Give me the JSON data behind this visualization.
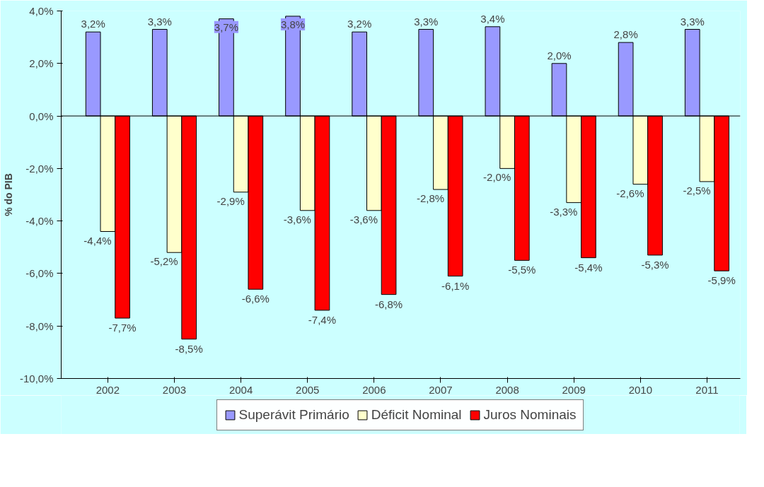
{
  "chart_data": {
    "type": "bar",
    "ylabel": "% do PIB",
    "categories": [
      "2002",
      "2003",
      "2004",
      "2005",
      "2006",
      "2007",
      "2008",
      "2009",
      "2010",
      "2011"
    ],
    "series": [
      {
        "name": "Superávit Primário",
        "color": "#9999ff",
        "values": [
          3.2,
          3.3,
          3.7,
          3.8,
          3.2,
          3.3,
          3.4,
          2.0,
          2.8,
          3.3
        ],
        "value_labels": [
          "3,2%",
          "3,3%",
          "3,7%",
          "3,8%",
          "3,2%",
          "3,3%",
          "3,4%",
          "2,0%",
          "2,8%",
          "3,3%"
        ]
      },
      {
        "name": "Déficit Nominal",
        "color": "#ffffcc",
        "values": [
          -4.4,
          -5.2,
          -2.9,
          -3.6,
          -3.6,
          -2.8,
          -2.0,
          -3.3,
          -2.6,
          -2.5
        ],
        "value_labels": [
          "-4,4%",
          "-5,2%",
          "-2,9%",
          "-3,6%",
          "-3,6%",
          "-2,8%",
          "-2,0%",
          "-3,3%",
          "-2,6%",
          "-2,5%"
        ]
      },
      {
        "name": "Juros Nominais",
        "color": "#ff0000",
        "values": [
          -7.7,
          -8.5,
          -6.6,
          -7.4,
          -6.8,
          -6.1,
          -5.5,
          -5.4,
          -5.3,
          -5.9
        ],
        "value_labels": [
          "-7,7%",
          "-8,5%",
          "-6,6%",
          "-7,4%",
          "-6,8%",
          "-6,1%",
          "-5,5%",
          "-5,4%",
          "-5,3%",
          "-5,9%"
        ]
      }
    ],
    "ylim": [
      -10,
      4
    ],
    "yticks": [
      {
        "value": -10,
        "label": "-10,0%"
      },
      {
        "value": -8,
        "label": "-8,0%"
      },
      {
        "value": -6,
        "label": "-6,0%"
      },
      {
        "value": -4,
        "label": "-4,0%"
      },
      {
        "value": -2,
        "label": "-2,0%"
      },
      {
        "value": 0,
        "label": "0,0%"
      },
      {
        "value": 2,
        "label": "2,0%"
      },
      {
        "value": 4,
        "label": "4,0%"
      }
    ],
    "legend": "bottom"
  }
}
